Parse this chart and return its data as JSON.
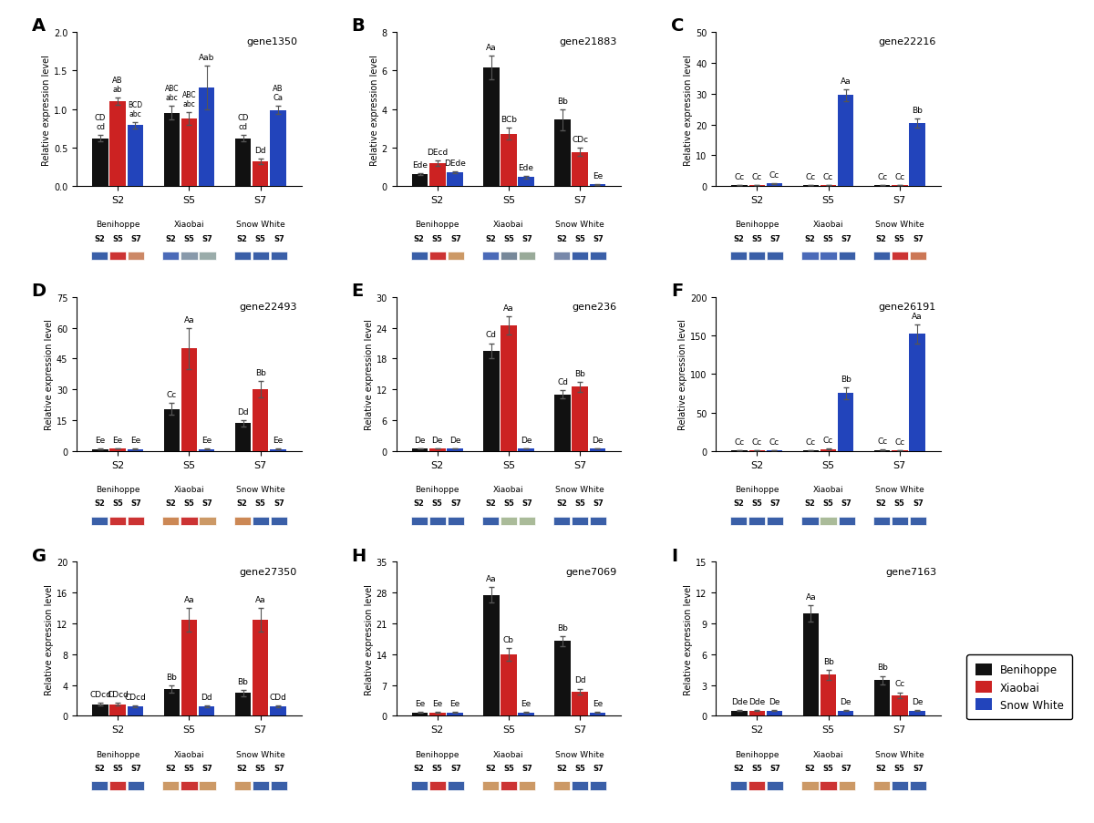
{
  "panels": [
    {
      "label": "A",
      "gene": "gene1350",
      "ylim": [
        0,
        2.0
      ],
      "yticks": [
        0,
        0.5,
        1.0,
        1.5,
        2.0
      ],
      "values": {
        "black": [
          0.62,
          0.95,
          0.62
        ],
        "red": [
          1.1,
          0.88,
          0.32
        ],
        "blue": [
          0.79,
          1.28,
          0.99
        ]
      },
      "errors": {
        "black": [
          0.04,
          0.09,
          0.04
        ],
        "red": [
          0.05,
          0.08,
          0.04
        ],
        "blue": [
          0.04,
          0.28,
          0.05
        ]
      },
      "sig_labels": {
        "black": [
          "CD\ncd",
          "ABC\nabc",
          "CD\ncd"
        ],
        "red": [
          "AB\nab",
          "ABC\nabc",
          "Dd"
        ],
        "blue": [
          "BCD\nabc",
          "Aab",
          "AB\nCa"
        ]
      },
      "color_boxes": [
        "#3a5fa8",
        "#cc3333",
        "#cc8866",
        "#4a6ab8",
        "#8899aa",
        "#9aacaa",
        "#3a5fa8",
        "#3a5fa8",
        "#3a5fa8"
      ]
    },
    {
      "label": "B",
      "gene": "gene21883",
      "ylim": [
        0,
        8
      ],
      "yticks": [
        0,
        2,
        4,
        6,
        8
      ],
      "values": {
        "black": [
          0.62,
          6.15,
          3.45
        ],
        "red": [
          1.18,
          2.72,
          1.78
        ],
        "blue": [
          0.72,
          0.46,
          0.08
        ]
      },
      "errors": {
        "black": [
          0.05,
          0.62,
          0.55
        ],
        "red": [
          0.15,
          0.32,
          0.2
        ],
        "blue": [
          0.05,
          0.08,
          0.02
        ]
      },
      "sig_labels": {
        "black": [
          "Ede",
          "Aa",
          "Bb"
        ],
        "red": [
          "DEcd",
          "BCb",
          "CDc"
        ],
        "blue": [
          "DEde",
          "Ede",
          "Ee"
        ]
      },
      "color_boxes": [
        "#3a5fa8",
        "#cc3333",
        "#cc9966",
        "#4a6ab8",
        "#778899",
        "#99aa99",
        "#7788aa",
        "#3a5fa8",
        "#3a5fa8"
      ]
    },
    {
      "label": "C",
      "gene": "gene22216",
      "ylim": [
        0,
        50
      ],
      "yticks": [
        0,
        10,
        20,
        30,
        40,
        50
      ],
      "values": {
        "black": [
          0.3,
          0.3,
          0.3
        ],
        "red": [
          0.3,
          0.3,
          0.3
        ],
        "blue": [
          0.8,
          29.5,
          20.5
        ]
      },
      "errors": {
        "black": [
          0.05,
          0.05,
          0.05
        ],
        "red": [
          0.05,
          0.05,
          0.05
        ],
        "blue": [
          0.1,
          1.8,
          1.5
        ]
      },
      "sig_labels": {
        "black": [
          "Cc",
          "Cc",
          "Cc"
        ],
        "red": [
          "Cc",
          "Cc",
          "Cc"
        ],
        "blue": [
          "Cc",
          "Aa",
          "Bb"
        ]
      },
      "color_boxes": [
        "#3a5fa8",
        "#3a5fa8",
        "#3a5fa8",
        "#4a6ab8",
        "#4a6ab8",
        "#3a5fa8",
        "#3a5fa8",
        "#cc3333",
        "#cc7755"
      ]
    },
    {
      "label": "D",
      "gene": "gene22493",
      "ylim": [
        0,
        75
      ],
      "yticks": [
        0,
        15,
        30,
        45,
        60,
        75
      ],
      "values": {
        "black": [
          1.0,
          20.5,
          13.5
        ],
        "red": [
          1.2,
          50.0,
          30.0
        ],
        "blue": [
          1.0,
          1.0,
          1.0
        ]
      },
      "errors": {
        "black": [
          0.1,
          3.0,
          1.5
        ],
        "red": [
          0.15,
          10.0,
          4.0
        ],
        "blue": [
          0.1,
          0.1,
          0.1
        ]
      },
      "sig_labels": {
        "black": [
          "Ee",
          "Cc",
          "Dd"
        ],
        "red": [
          "Ee",
          "Aa",
          "Bb"
        ],
        "blue": [
          "Ee",
          "Ee",
          "Ee"
        ]
      },
      "color_boxes": [
        "#3a5fa8",
        "#cc3333",
        "#cc3333",
        "#cc8855",
        "#cc3333",
        "#cc9966",
        "#cc8855",
        "#3a5fa8",
        "#3a5fa8"
      ]
    },
    {
      "label": "E",
      "gene": "gene236",
      "ylim": [
        0,
        30
      ],
      "yticks": [
        0,
        6,
        12,
        18,
        24,
        30
      ],
      "values": {
        "black": [
          0.5,
          19.5,
          11.0
        ],
        "red": [
          0.5,
          24.5,
          12.5
        ],
        "blue": [
          0.5,
          0.5,
          0.5
        ]
      },
      "errors": {
        "black": [
          0.05,
          1.5,
          0.8
        ],
        "red": [
          0.05,
          1.8,
          1.0
        ],
        "blue": [
          0.05,
          0.05,
          0.05
        ]
      },
      "sig_labels": {
        "black": [
          "De",
          "Cd",
          "Cd"
        ],
        "red": [
          "De",
          "Aa",
          "Bb"
        ],
        "blue": [
          "De",
          "De",
          "De"
        ]
      },
      "color_boxes": [
        "#3a5fa8",
        "#3a5fa8",
        "#3a5fa8",
        "#3a5fa8",
        "#aabb99",
        "#aabb99",
        "#3a5fa8",
        "#3a5fa8",
        "#3a5fa8"
      ]
    },
    {
      "label": "F",
      "gene": "gene26191",
      "ylim": [
        0,
        200
      ],
      "yticks": [
        0,
        50,
        100,
        150,
        200
      ],
      "values": {
        "black": [
          0.5,
          1.0,
          1.5
        ],
        "red": [
          0.5,
          2.5,
          0.5
        ],
        "blue": [
          1.0,
          75.0,
          152.0
        ]
      },
      "errors": {
        "black": [
          0.05,
          0.1,
          0.15
        ],
        "red": [
          0.05,
          0.3,
          0.05
        ],
        "blue": [
          0.1,
          8.0,
          12.0
        ]
      },
      "sig_labels": {
        "black": [
          "Cc",
          "Cc",
          "Cc"
        ],
        "red": [
          "Cc",
          "Cc",
          "Cc"
        ],
        "blue": [
          "Cc",
          "Bb",
          "Aa"
        ]
      },
      "color_boxes": [
        "#3a5fa8",
        "#3a5fa8",
        "#3a5fa8",
        "#3a5fa8",
        "#aabb99",
        "#3a5fa8",
        "#3a5fa8",
        "#3a5fa8",
        "#3a5fa8"
      ]
    },
    {
      "label": "G",
      "gene": "gene27350",
      "ylim": [
        0,
        20
      ],
      "yticks": [
        0,
        4,
        8,
        12,
        16,
        20
      ],
      "values": {
        "black": [
          1.5,
          3.5,
          3.0
        ],
        "red": [
          1.5,
          12.5,
          12.5
        ],
        "blue": [
          1.2,
          1.2,
          1.2
        ]
      },
      "errors": {
        "black": [
          0.2,
          0.5,
          0.4
        ],
        "red": [
          0.2,
          1.5,
          1.5
        ],
        "blue": [
          0.1,
          0.1,
          0.1
        ]
      },
      "sig_labels": {
        "black": [
          "CDcd",
          "Bb",
          "Bb"
        ],
        "red": [
          "CDcd",
          "Aa",
          "Aa"
        ],
        "blue": [
          "CDcd",
          "Dd",
          "CDd"
        ]
      },
      "color_boxes": [
        "#3a5fa8",
        "#cc3333",
        "#3a5fa8",
        "#cc9966",
        "#cc3333",
        "#cc9966",
        "#cc9966",
        "#3a5fa8",
        "#3a5fa8"
      ]
    },
    {
      "label": "H",
      "gene": "gene7069",
      "ylim": [
        0,
        35
      ],
      "yticks": [
        0,
        7,
        14,
        21,
        28,
        35
      ],
      "values": {
        "black": [
          0.8,
          27.5,
          17.0
        ],
        "red": [
          0.8,
          14.0,
          5.5
        ],
        "blue": [
          0.8,
          0.8,
          0.8
        ]
      },
      "errors": {
        "black": [
          0.05,
          1.8,
          1.2
        ],
        "red": [
          0.1,
          1.5,
          0.7
        ],
        "blue": [
          0.05,
          0.05,
          0.05
        ]
      },
      "sig_labels": {
        "black": [
          "Ee",
          "Aa",
          "Bb"
        ],
        "red": [
          "Ee",
          "Cb",
          "Dd"
        ],
        "blue": [
          "Ee",
          "Ee",
          "Ee"
        ]
      },
      "color_boxes": [
        "#3a5fa8",
        "#cc3333",
        "#3a5fa8",
        "#cc9966",
        "#cc3333",
        "#cc9966",
        "#cc9966",
        "#3a5fa8",
        "#3a5fa8"
      ]
    },
    {
      "label": "I",
      "gene": "gene7163",
      "ylim": [
        0,
        15
      ],
      "yticks": [
        0,
        3,
        6,
        9,
        12,
        15
      ],
      "values": {
        "black": [
          0.5,
          10.0,
          3.5
        ],
        "red": [
          0.5,
          4.0,
          2.0
        ],
        "blue": [
          0.5,
          0.5,
          0.5
        ]
      },
      "errors": {
        "black": [
          0.05,
          0.8,
          0.4
        ],
        "red": [
          0.05,
          0.5,
          0.3
        ],
        "blue": [
          0.05,
          0.05,
          0.05
        ]
      },
      "sig_labels": {
        "black": [
          "Dde",
          "Aa",
          "Bb"
        ],
        "red": [
          "Dde",
          "Bb",
          "Cc"
        ],
        "blue": [
          "De",
          "De",
          "De"
        ]
      },
      "color_boxes": [
        "#3a5fa8",
        "#cc3333",
        "#3a5fa8",
        "#cc9966",
        "#cc3333",
        "#cc9966",
        "#cc9966",
        "#3a5fa8",
        "#3a5fa8"
      ]
    }
  ],
  "bar_colors": {
    "black": "#111111",
    "red": "#cc2222",
    "blue": "#2244bb"
  },
  "ylabel": "Relative expression level",
  "legend_labels": [
    "Benihoppe",
    "Xiaobai",
    "Snow White"
  ]
}
